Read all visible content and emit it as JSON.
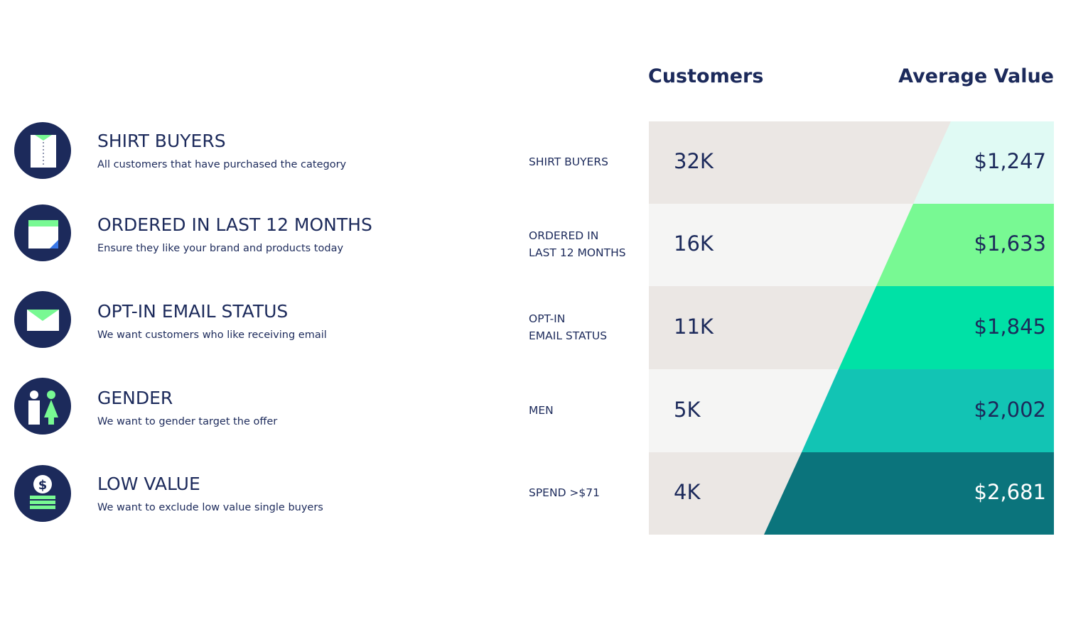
{
  "criteria": [
    {
      "title": "SHIRT BUYERS",
      "description": "All customers that have purchased the category"
    },
    {
      "title": "ORDERED IN LAST 12 MONTHS",
      "description": "Ensure they like your brand and products today"
    },
    {
      "title": "OPT-IN EMAIL STATUS",
      "description": "We want customers who like receiving email"
    },
    {
      "title": "GENDER",
      "description": "We want to gender target the offer"
    },
    {
      "title": "LOW VALUE",
      "description": "We want to exclude low value single buyers"
    }
  ],
  "table": {
    "headers": [
      "Customers",
      "Average Value"
    ],
    "rows": [
      {
        "label": [
          "SHIRT BUYERS"
        ],
        "customers": "32K",
        "average_value": "$1,247"
      },
      {
        "label": [
          "ORDERED IN",
          "LAST 12 MONTHS"
        ],
        "customers": "16K",
        "average_value": "$1,633"
      },
      {
        "label": [
          "OPT-IN",
          "EMAIL STATUS"
        ],
        "customers": "11K",
        "average_value": "$1,845"
      },
      {
        "label": [
          "MEN"
        ],
        "customers": "5K",
        "average_value": "$2,002"
      },
      {
        "label": [
          "SPEND >$71"
        ],
        "customers": "4K",
        "average_value": "$2,681"
      }
    ]
  }
}
